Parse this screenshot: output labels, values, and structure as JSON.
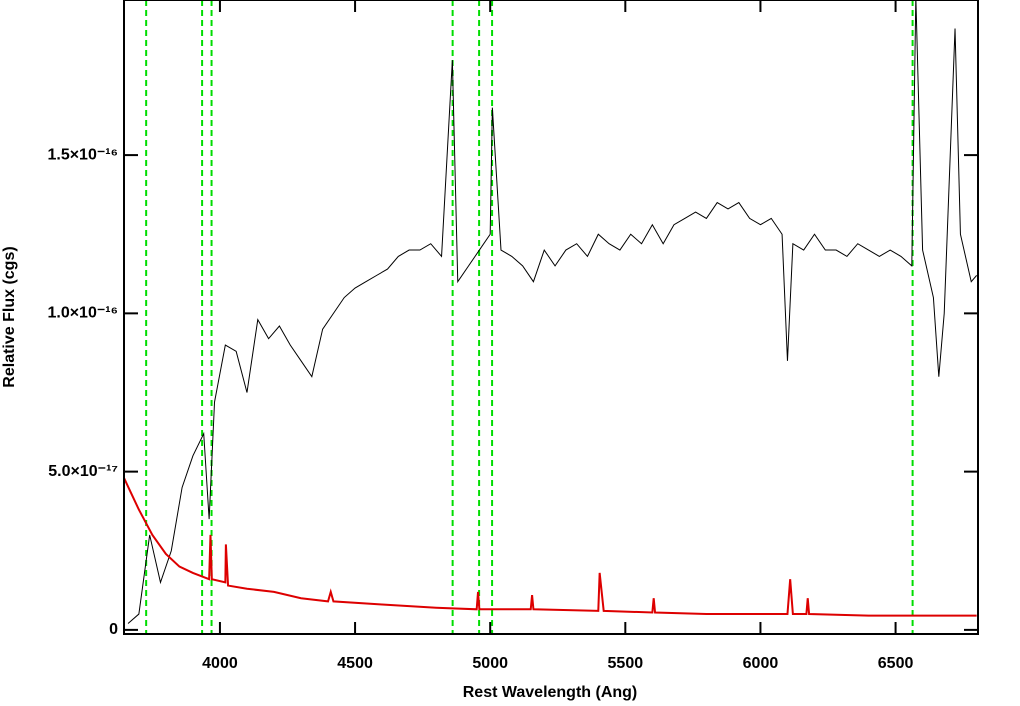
{
  "chart_data": {
    "type": "line",
    "xlabel": "Rest Wavelength (Ang)",
    "ylabel": "Relative Flux (cgs)",
    "xlim": [
      3645,
      6805
    ],
    "ylim": [
      -1.3e-18,
      1.99e-16
    ],
    "xticks": [
      4000,
      4500,
      5000,
      5500,
      6000,
      6500
    ],
    "yticks": [
      0,
      {
        "value": 5e-17,
        "label": "5.0×10⁻¹⁷"
      },
      {
        "value": 1e-16,
        "label": "1.0×10⁻¹⁶"
      },
      {
        "value": 1.5e-16,
        "label": "1.5×10⁻¹⁶"
      }
    ],
    "reference_lines": {
      "color": "#00dd00",
      "x": [
        3727,
        3934,
        3969,
        4861,
        4959,
        5007,
        6563
      ]
    },
    "series": [
      {
        "color": "#000000",
        "x": [
          3660,
          3700,
          3740,
          3780,
          3820,
          3860,
          3900,
          3940,
          3960,
          3980,
          4020,
          4060,
          4100,
          4140,
          4180,
          4220,
          4260,
          4300,
          4340,
          4380,
          4420,
          4460,
          4500,
          4540,
          4580,
          4620,
          4660,
          4700,
          4740,
          4780,
          4820,
          4860,
          4880,
          4920,
          4960,
          5000,
          5008,
          5040,
          5080,
          5120,
          5160,
          5200,
          5240,
          5280,
          5320,
          5360,
          5400,
          5440,
          5480,
          5520,
          5560,
          5600,
          5640,
          5680,
          5720,
          5760,
          5800,
          5840,
          5880,
          5920,
          5960,
          6000,
          6040,
          6080,
          6100,
          6120,
          6160,
          6200,
          6240,
          6280,
          6320,
          6360,
          6400,
          6440,
          6480,
          6520,
          6560,
          6575,
          6600,
          6640,
          6660,
          6680,
          6720,
          6740,
          6780,
          6800
        ],
        "values": [
          2e-18,
          5e-18,
          3e-17,
          1.5e-17,
          2.5e-17,
          4.5e-17,
          5.5e-17,
          6.2e-17,
          3.5e-17,
          7.2e-17,
          9e-17,
          8.8e-17,
          7.5e-17,
          9.8e-17,
          9.2e-17,
          9.6e-17,
          9e-17,
          8.5e-17,
          8e-17,
          9.5e-17,
          1e-16,
          1.05e-16,
          1.08e-16,
          1.1e-16,
          1.12e-16,
          1.14e-16,
          1.18e-16,
          1.2e-16,
          1.2e-16,
          1.22e-16,
          1.18e-16,
          1.8e-16,
          1.1e-16,
          1.15e-16,
          1.2e-16,
          1.25e-16,
          1.65e-16,
          1.2e-16,
          1.18e-16,
          1.15e-16,
          1.1e-16,
          1.2e-16,
          1.15e-16,
          1.2e-16,
          1.22e-16,
          1.18e-16,
          1.25e-16,
          1.22e-16,
          1.2e-16,
          1.25e-16,
          1.22e-16,
          1.28e-16,
          1.22e-16,
          1.28e-16,
          1.3e-16,
          1.32e-16,
          1.3e-16,
          1.35e-16,
          1.33e-16,
          1.35e-16,
          1.3e-16,
          1.28e-16,
          1.3e-16,
          1.25e-16,
          8.5e-17,
          1.22e-16,
          1.2e-16,
          1.25e-16,
          1.2e-16,
          1.2e-16,
          1.18e-16,
          1.22e-16,
          1.2e-16,
          1.18e-16,
          1.2e-16,
          1.18e-16,
          1.15e-16,
          2e-16,
          1.2e-16,
          1.05e-16,
          8e-17,
          1e-16,
          1.9e-16,
          1.25e-16,
          1.1e-16,
          1.12e-16
        ]
      },
      {
        "color": "#dd0000",
        "x": [
          3645,
          3700,
          3750,
          3800,
          3850,
          3900,
          3960,
          3965,
          3970,
          4020,
          4022,
          4030,
          4100,
          4200,
          4300,
          4400,
          4410,
          4420,
          4600,
          4800,
          4950,
          4955,
          4960,
          5150,
          5155,
          5160,
          5400,
          5405,
          5420,
          5600,
          5605,
          5610,
          5800,
          6000,
          6100,
          6110,
          6120,
          6170,
          6175,
          6180,
          6400,
          6600,
          6800
        ],
        "values": [
          4.8e-17,
          3.8e-17,
          3e-17,
          2.4e-17,
          2e-17,
          1.8e-17,
          1.6e-17,
          3e-17,
          1.6e-17,
          1.5e-17,
          2.7e-17,
          1.4e-17,
          1.3e-17,
          1.2e-17,
          1e-17,
          9e-18,
          1.2e-17,
          9e-18,
          8e-18,
          7e-18,
          6.5e-18,
          1.2e-17,
          6.5e-18,
          6.5e-18,
          1.1e-17,
          6.5e-18,
          6e-18,
          1.8e-17,
          6e-18,
          5.5e-18,
          1e-17,
          5.5e-18,
          5e-18,
          5e-18,
          5e-18,
          1.6e-17,
          5e-18,
          5e-18,
          1e-17,
          5e-18,
          4.5e-18,
          4.5e-18,
          4.5e-18
        ]
      }
    ]
  }
}
